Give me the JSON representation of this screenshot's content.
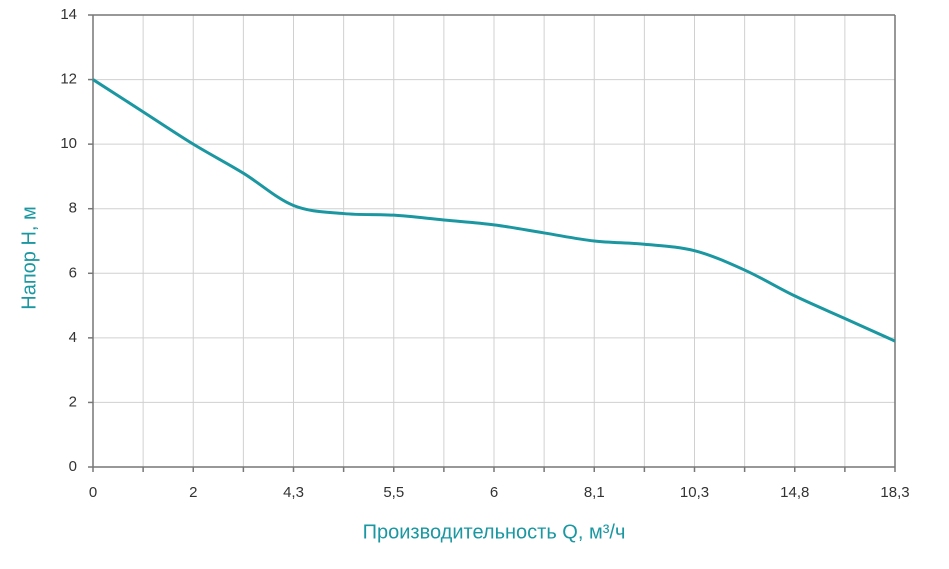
{
  "chart_data": {
    "type": "line",
    "x_label": "Производительность Q, м³/ч",
    "y_label": "Напор Н, м",
    "categories": [
      "0",
      null,
      "2",
      null,
      "4,3",
      null,
      "5,5",
      null,
      "6",
      null,
      "8,1",
      null,
      "10,3",
      null,
      "14,8",
      null,
      "18,3"
    ],
    "values": [
      12,
      11,
      10,
      9.1,
      8.1,
      7.85,
      7.8,
      7.65,
      7.5,
      7.25,
      7.0,
      6.9,
      6.7,
      6.1,
      5.3,
      4.6,
      3.9
    ],
    "color": "#1a97a1",
    "ylim": [
      0,
      14
    ],
    "yticks": [
      0,
      2,
      4,
      6,
      8,
      10,
      12,
      14
    ],
    "grid": true
  }
}
